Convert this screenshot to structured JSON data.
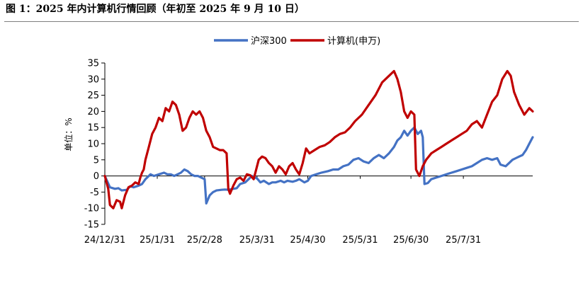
{
  "figure_title": "图 1：2025 年内计算机行情回顾（年初至 2025 年 9 月 10 日）",
  "chart_data": {
    "type": "line",
    "title": "",
    "ylabel": "单位：%",
    "xlabel": "",
    "ylim": [
      -15,
      35
    ],
    "yticks": [
      -15,
      -10,
      -5,
      0,
      5,
      10,
      15,
      20,
      25,
      30,
      35
    ],
    "xlim": [
      "2024-12-31",
      "2025-09-10"
    ],
    "xticks": [
      {
        "label": "24/12/31",
        "date": "2024-12-31"
      },
      {
        "label": "25/1/31",
        "date": "2025-01-31"
      },
      {
        "label": "25/2/28",
        "date": "2025-02-28"
      },
      {
        "label": "25/3/31",
        "date": "2025-03-31"
      },
      {
        "label": "25/4/30",
        "date": "2025-04-30"
      },
      {
        "label": "25/5/31",
        "date": "2025-05-31"
      },
      {
        "label": "25/6/30",
        "date": "2025-06-30"
      },
      {
        "label": "25/7/31",
        "date": "2025-07-31"
      }
    ],
    "legend_position": "top-center",
    "grid": false,
    "series": [
      {
        "name": "沪深300",
        "color": "#4472C4",
        "points": [
          [
            "2024-12-31",
            0
          ],
          [
            "2025-01-03",
            -3.5
          ],
          [
            "2025-01-06",
            -4
          ],
          [
            "2025-01-08",
            -3.8
          ],
          [
            "2025-01-10",
            -4.5
          ],
          [
            "2025-01-13",
            -4.3
          ],
          [
            "2025-01-15",
            -3.2
          ],
          [
            "2025-01-17",
            -3.5
          ],
          [
            "2025-01-20",
            -3
          ],
          [
            "2025-01-22",
            -2.5
          ],
          [
            "2025-01-24",
            -1
          ],
          [
            "2025-01-27",
            0.5
          ],
          [
            "2025-01-29",
            0
          ],
          [
            "2025-02-01",
            0.5
          ],
          [
            "2025-02-04",
            1
          ],
          [
            "2025-02-06",
            0.5
          ],
          [
            "2025-02-08",
            0.5
          ],
          [
            "2025-02-10",
            0
          ],
          [
            "2025-02-12",
            0.5
          ],
          [
            "2025-02-14",
            1
          ],
          [
            "2025-02-16",
            2
          ],
          [
            "2025-02-18",
            1.5
          ],
          [
            "2025-02-20",
            0.5
          ],
          [
            "2025-02-22",
            0
          ],
          [
            "2025-02-24",
            0
          ],
          [
            "2025-02-26",
            -0.5
          ],
          [
            "2025-02-28",
            -1
          ],
          [
            "2025-03-01",
            -8.5
          ],
          [
            "2025-03-03",
            -6
          ],
          [
            "2025-03-05",
            -5
          ],
          [
            "2025-03-07",
            -4.5
          ],
          [
            "2025-03-10",
            -4.3
          ],
          [
            "2025-03-12",
            -4.2
          ],
          [
            "2025-03-14",
            -4.3
          ],
          [
            "2025-03-17",
            -4
          ],
          [
            "2025-03-19",
            -3.8
          ],
          [
            "2025-03-21",
            -2.5
          ],
          [
            "2025-03-24",
            -2
          ],
          [
            "2025-03-26",
            -1
          ],
          [
            "2025-03-28",
            0
          ],
          [
            "2025-03-31",
            -0.8
          ],
          [
            "2025-04-02",
            -2
          ],
          [
            "2025-04-04",
            -1.5
          ],
          [
            "2025-04-07",
            -2.5
          ],
          [
            "2025-04-09",
            -2
          ],
          [
            "2025-04-11",
            -2
          ],
          [
            "2025-04-14",
            -1.5
          ],
          [
            "2025-04-16",
            -2
          ],
          [
            "2025-04-18",
            -1.5
          ],
          [
            "2025-04-21",
            -1.8
          ],
          [
            "2025-04-23",
            -1.5
          ],
          [
            "2025-04-25",
            -1
          ],
          [
            "2025-04-28",
            -2
          ],
          [
            "2025-04-30",
            -1.5
          ],
          [
            "2025-05-02",
            0
          ],
          [
            "2025-05-05",
            0.5
          ],
          [
            "2025-05-08",
            1
          ],
          [
            "2025-05-12",
            1.5
          ],
          [
            "2025-05-15",
            2
          ],
          [
            "2025-05-18",
            2
          ],
          [
            "2025-05-21",
            3
          ],
          [
            "2025-05-24",
            3.5
          ],
          [
            "2025-05-27",
            5
          ],
          [
            "2025-05-30",
            5.5
          ],
          [
            "2025-06-02",
            4.5
          ],
          [
            "2025-06-05",
            4
          ],
          [
            "2025-06-08",
            5.5
          ],
          [
            "2025-06-11",
            6.5
          ],
          [
            "2025-06-14",
            5.5
          ],
          [
            "2025-06-17",
            7
          ],
          [
            "2025-06-20",
            9
          ],
          [
            "2025-06-22",
            11
          ],
          [
            "2025-06-24",
            12
          ],
          [
            "2025-06-26",
            14
          ],
          [
            "2025-06-28",
            12.5
          ],
          [
            "2025-06-30",
            14
          ],
          [
            "2025-07-02",
            15
          ],
          [
            "2025-07-04",
            13
          ],
          [
            "2025-07-06",
            14
          ],
          [
            "2025-07-07",
            12
          ],
          [
            "2025-07-08",
            -2.5
          ],
          [
            "2025-07-10",
            -2.2
          ],
          [
            "2025-07-12",
            -1
          ],
          [
            "2025-07-15",
            -0.5
          ],
          [
            "2025-07-18",
            0
          ],
          [
            "2025-07-21",
            0.5
          ],
          [
            "2025-07-24",
            1
          ],
          [
            "2025-07-27",
            1.5
          ],
          [
            "2025-07-30",
            2
          ],
          [
            "2025-08-02",
            2.5
          ],
          [
            "2025-08-05",
            3
          ],
          [
            "2025-08-08",
            4
          ],
          [
            "2025-08-11",
            5
          ],
          [
            "2025-08-14",
            5.5
          ],
          [
            "2025-08-17",
            5
          ],
          [
            "2025-08-20",
            5.5
          ],
          [
            "2025-08-22",
            3.5
          ],
          [
            "2025-08-25",
            3
          ],
          [
            "2025-08-27",
            4
          ],
          [
            "2025-08-29",
            5
          ],
          [
            "2025-08-31",
            5.5
          ],
          [
            "2025-09-02",
            6
          ],
          [
            "2025-09-04",
            6.5
          ],
          [
            "2025-09-06",
            8
          ],
          [
            "2025-09-08",
            10
          ],
          [
            "2025-09-10",
            12
          ]
        ]
      },
      {
        "name": "计算机(申万)",
        "color": "#C00000",
        "points": [
          [
            "2024-12-31",
            0
          ],
          [
            "2025-01-02",
            -4
          ],
          [
            "2025-01-03",
            -9
          ],
          [
            "2025-01-05",
            -10
          ],
          [
            "2025-01-07",
            -7.5
          ],
          [
            "2025-01-09",
            -8
          ],
          [
            "2025-01-10",
            -10
          ],
          [
            "2025-01-12",
            -6
          ],
          [
            "2025-01-14",
            -3.5
          ],
          [
            "2025-01-16",
            -3
          ],
          [
            "2025-01-18",
            -2
          ],
          [
            "2025-01-20",
            -2.5
          ],
          [
            "2025-01-21",
            -0.5
          ],
          [
            "2025-01-22",
            1
          ],
          [
            "2025-01-23",
            2
          ],
          [
            "2025-01-24",
            5
          ],
          [
            "2025-01-26",
            9
          ],
          [
            "2025-01-28",
            13
          ],
          [
            "2025-01-30",
            15
          ],
          [
            "2025-02-01",
            18
          ],
          [
            "2025-02-03",
            17
          ],
          [
            "2025-02-05",
            21
          ],
          [
            "2025-02-07",
            20
          ],
          [
            "2025-02-09",
            23
          ],
          [
            "2025-02-11",
            22
          ],
          [
            "2025-02-13",
            19
          ],
          [
            "2025-02-15",
            14
          ],
          [
            "2025-02-17",
            15
          ],
          [
            "2025-02-19",
            18
          ],
          [
            "2025-02-21",
            20
          ],
          [
            "2025-02-23",
            19
          ],
          [
            "2025-02-25",
            20
          ],
          [
            "2025-02-27",
            18
          ],
          [
            "2025-03-01",
            14
          ],
          [
            "2025-03-03",
            12
          ],
          [
            "2025-03-05",
            9
          ],
          [
            "2025-03-07",
            8.5
          ],
          [
            "2025-03-09",
            8
          ],
          [
            "2025-03-11",
            8
          ],
          [
            "2025-03-13",
            7
          ],
          [
            "2025-03-14",
            -4
          ],
          [
            "2025-03-15",
            -5.5
          ],
          [
            "2025-03-17",
            -3
          ],
          [
            "2025-03-19",
            -1
          ],
          [
            "2025-03-21",
            -0.5
          ],
          [
            "2025-03-23",
            -1.5
          ],
          [
            "2025-03-25",
            0.5
          ],
          [
            "2025-03-27",
            0.2
          ],
          [
            "2025-03-29",
            -1
          ],
          [
            "2025-04-01",
            5
          ],
          [
            "2025-04-03",
            6
          ],
          [
            "2025-04-05",
            5.5
          ],
          [
            "2025-04-07",
            4
          ],
          [
            "2025-04-09",
            3
          ],
          [
            "2025-04-11",
            1
          ],
          [
            "2025-04-13",
            3
          ],
          [
            "2025-04-15",
            2
          ],
          [
            "2025-04-17",
            0.5
          ],
          [
            "2025-04-19",
            3
          ],
          [
            "2025-04-21",
            4
          ],
          [
            "2025-04-23",
            2
          ],
          [
            "2025-04-25",
            0.5
          ],
          [
            "2025-04-27",
            4
          ],
          [
            "2025-04-29",
            8.5
          ],
          [
            "2025-05-01",
            7
          ],
          [
            "2025-05-04",
            8
          ],
          [
            "2025-05-07",
            9
          ],
          [
            "2025-05-10",
            9.5
          ],
          [
            "2025-05-13",
            10.5
          ],
          [
            "2025-05-16",
            12
          ],
          [
            "2025-05-19",
            13
          ],
          [
            "2025-05-22",
            13.5
          ],
          [
            "2025-05-25",
            15
          ],
          [
            "2025-05-28",
            17
          ],
          [
            "2025-06-01",
            19
          ],
          [
            "2025-06-05",
            22
          ],
          [
            "2025-06-09",
            25
          ],
          [
            "2025-06-13",
            29
          ],
          [
            "2025-06-17",
            31
          ],
          [
            "2025-06-20",
            32.5
          ],
          [
            "2025-06-22",
            30
          ],
          [
            "2025-06-24",
            26
          ],
          [
            "2025-06-26",
            20
          ],
          [
            "2025-06-28",
            18
          ],
          [
            "2025-06-30",
            20
          ],
          [
            "2025-07-02",
            19
          ],
          [
            "2025-07-03",
            2
          ],
          [
            "2025-07-05",
            0
          ],
          [
            "2025-07-07",
            3
          ],
          [
            "2025-07-09",
            5
          ],
          [
            "2025-07-12",
            7
          ],
          [
            "2025-07-15",
            8
          ],
          [
            "2025-07-18",
            9
          ],
          [
            "2025-07-21",
            10
          ],
          [
            "2025-07-24",
            11
          ],
          [
            "2025-07-27",
            12
          ],
          [
            "2025-07-30",
            13
          ],
          [
            "2025-08-02",
            14
          ],
          [
            "2025-08-05",
            16
          ],
          [
            "2025-08-08",
            17
          ],
          [
            "2025-08-11",
            15
          ],
          [
            "2025-08-14",
            19
          ],
          [
            "2025-08-17",
            23
          ],
          [
            "2025-08-20",
            25
          ],
          [
            "2025-08-23",
            30
          ],
          [
            "2025-08-26",
            32.5
          ],
          [
            "2025-08-28",
            31
          ],
          [
            "2025-08-30",
            26
          ],
          [
            "2025-09-02",
            22
          ],
          [
            "2025-09-05",
            19
          ],
          [
            "2025-09-08",
            21
          ],
          [
            "2025-09-10",
            20
          ]
        ]
      }
    ]
  }
}
